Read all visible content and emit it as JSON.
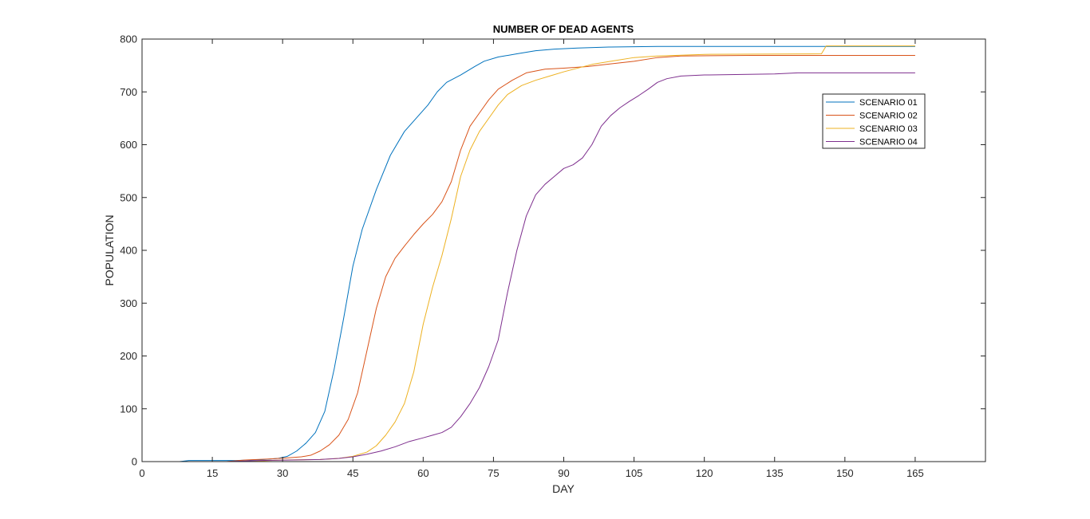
{
  "chart_data": {
    "type": "line",
    "title": "NUMBER OF DEAD AGENTS",
    "xlabel": "DAY",
    "ylabel": "POPULATION",
    "xlim": [
      0,
      180
    ],
    "ylim": [
      0,
      800
    ],
    "xticks": [
      0,
      15,
      30,
      45,
      60,
      75,
      90,
      105,
      120,
      135,
      150,
      165
    ],
    "yticks": [
      0,
      100,
      200,
      300,
      400,
      500,
      600,
      700,
      800
    ],
    "grid": false,
    "legend_position": "top-right",
    "series": [
      {
        "name": "SCENARIO 01",
        "color": "#0072BD",
        "points": [
          [
            0,
            0
          ],
          [
            8,
            0
          ],
          [
            10,
            2
          ],
          [
            20,
            2
          ],
          [
            26,
            4
          ],
          [
            29,
            6
          ],
          [
            31,
            10
          ],
          [
            33,
            20
          ],
          [
            35,
            35
          ],
          [
            37,
            55
          ],
          [
            39,
            95
          ],
          [
            41,
            175
          ],
          [
            43,
            270
          ],
          [
            45,
            370
          ],
          [
            47,
            440
          ],
          [
            50,
            515
          ],
          [
            53,
            580
          ],
          [
            56,
            625
          ],
          [
            59,
            655
          ],
          [
            61,
            675
          ],
          [
            63,
            700
          ],
          [
            65,
            718
          ],
          [
            68,
            732
          ],
          [
            71,
            748
          ],
          [
            73,
            758
          ],
          [
            76,
            766
          ],
          [
            80,
            772
          ],
          [
            84,
            778
          ],
          [
            88,
            781
          ],
          [
            93,
            783
          ],
          [
            100,
            785
          ],
          [
            110,
            786
          ],
          [
            130,
            786
          ],
          [
            165,
            786
          ]
        ]
      },
      {
        "name": "SCENARIO 02",
        "color": "#D95319",
        "points": [
          [
            0,
            0
          ],
          [
            18,
            0
          ],
          [
            22,
            3
          ],
          [
            27,
            5
          ],
          [
            31,
            7
          ],
          [
            34,
            9
          ],
          [
            36,
            12
          ],
          [
            38,
            20
          ],
          [
            40,
            32
          ],
          [
            42,
            50
          ],
          [
            44,
            80
          ],
          [
            46,
            130
          ],
          [
            48,
            210
          ],
          [
            50,
            290
          ],
          [
            52,
            350
          ],
          [
            54,
            385
          ],
          [
            56,
            408
          ],
          [
            58,
            430
          ],
          [
            60,
            450
          ],
          [
            62,
            468
          ],
          [
            64,
            492
          ],
          [
            66,
            530
          ],
          [
            68,
            590
          ],
          [
            70,
            635
          ],
          [
            72,
            660
          ],
          [
            74,
            685
          ],
          [
            76,
            705
          ],
          [
            79,
            722
          ],
          [
            82,
            736
          ],
          [
            86,
            743
          ],
          [
            90,
            745
          ],
          [
            95,
            748
          ],
          [
            100,
            753
          ],
          [
            105,
            758
          ],
          [
            110,
            765
          ],
          [
            115,
            768
          ],
          [
            130,
            769
          ],
          [
            165,
            769
          ]
        ]
      },
      {
        "name": "SCENARIO 03",
        "color": "#EDB120",
        "points": [
          [
            0,
            0
          ],
          [
            22,
            0
          ],
          [
            30,
            3
          ],
          [
            38,
            4
          ],
          [
            42,
            6
          ],
          [
            45,
            10
          ],
          [
            48,
            18
          ],
          [
            50,
            30
          ],
          [
            52,
            50
          ],
          [
            54,
            75
          ],
          [
            56,
            110
          ],
          [
            58,
            170
          ],
          [
            60,
            260
          ],
          [
            62,
            330
          ],
          [
            64,
            390
          ],
          [
            66,
            460
          ],
          [
            68,
            540
          ],
          [
            70,
            590
          ],
          [
            72,
            625
          ],
          [
            74,
            650
          ],
          [
            76,
            675
          ],
          [
            78,
            695
          ],
          [
            81,
            712
          ],
          [
            84,
            722
          ],
          [
            87,
            730
          ],
          [
            90,
            738
          ],
          [
            93,
            745
          ],
          [
            96,
            752
          ],
          [
            100,
            758
          ],
          [
            105,
            765
          ],
          [
            110,
            768
          ],
          [
            120,
            771
          ],
          [
            145,
            772
          ],
          [
            146,
            787
          ],
          [
            165,
            787
          ]
        ]
      },
      {
        "name": "SCENARIO 04",
        "color": "#7E2F8E",
        "points": [
          [
            0,
            0
          ],
          [
            18,
            0
          ],
          [
            25,
            2
          ],
          [
            32,
            3
          ],
          [
            38,
            4
          ],
          [
            42,
            6
          ],
          [
            45,
            9
          ],
          [
            48,
            14
          ],
          [
            51,
            20
          ],
          [
            54,
            28
          ],
          [
            57,
            38
          ],
          [
            60,
            45
          ],
          [
            62,
            50
          ],
          [
            64,
            55
          ],
          [
            66,
            65
          ],
          [
            68,
            85
          ],
          [
            70,
            110
          ],
          [
            72,
            140
          ],
          [
            74,
            180
          ],
          [
            76,
            230
          ],
          [
            78,
            320
          ],
          [
            80,
            400
          ],
          [
            82,
            465
          ],
          [
            84,
            505
          ],
          [
            86,
            525
          ],
          [
            88,
            540
          ],
          [
            90,
            555
          ],
          [
            92,
            562
          ],
          [
            94,
            575
          ],
          [
            96,
            600
          ],
          [
            98,
            635
          ],
          [
            100,
            655
          ],
          [
            102,
            670
          ],
          [
            104,
            682
          ],
          [
            106,
            693
          ],
          [
            108,
            705
          ],
          [
            110,
            718
          ],
          [
            112,
            725
          ],
          [
            115,
            730
          ],
          [
            120,
            732
          ],
          [
            135,
            734
          ],
          [
            140,
            736
          ],
          [
            165,
            736
          ]
        ]
      }
    ]
  }
}
